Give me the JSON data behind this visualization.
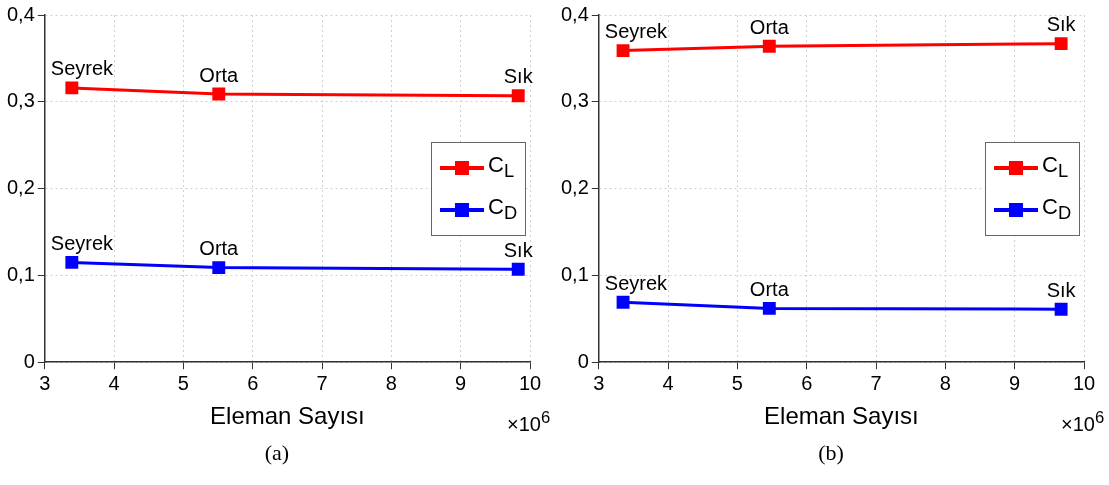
{
  "chart_data": [
    {
      "type": "line",
      "xlabel": "Eleman Sayısı",
      "xlim": [
        3,
        10
      ],
      "xticks": [
        3,
        4,
        5,
        6,
        7,
        8,
        9,
        10
      ],
      "ylim": [
        0,
        0.4
      ],
      "yticks": [
        0,
        {
          "value": 0.1,
          "label": "0,1"
        },
        {
          "value": 0.2,
          "label": "0,2"
        },
        {
          "value": 0.3,
          "label": "0,3"
        },
        {
          "value": 0.4,
          "label": "0,4"
        }
      ],
      "grid": true,
      "legend": "right",
      "marker": "square",
      "line_style": "solid",
      "x": [
        3.39,
        5.51,
        9.83
      ],
      "series": [
        {
          "name": "C$_{L}$",
          "color": "#ff0000",
          "values": [
            0.316,
            0.309,
            0.307
          ]
        },
        {
          "name": "C$_{D}$",
          "color": "#0000ff",
          "values": [
            0.115,
            0.109,
            0.107
          ]
        }
      ],
      "annotations": [
        {
          "text": "Seyrek",
          "x": 3.39,
          "y": 0.316
        },
        {
          "text": "Orta",
          "x": 5.51,
          "y": 0.309
        },
        {
          "text": "Sık",
          "x": 9.83,
          "y": 0.307
        },
        {
          "text": "Seyrek",
          "x": 3.39,
          "y": 0.115
        },
        {
          "text": "Orta",
          "x": 5.51,
          "y": 0.109
        },
        {
          "text": "Sık",
          "x": 9.83,
          "y": 0.107
        },
        "×10$^{6}$",
        "(a)"
      ]
    },
    {
      "type": "line",
      "xlabel": "Eleman Sayısı",
      "xlim": [
        3,
        10
      ],
      "xticks": [
        3,
        4,
        5,
        6,
        7,
        8,
        9,
        10
      ],
      "ylim": [
        0,
        0.4
      ],
      "yticks": [
        0,
        {
          "value": 0.1,
          "label": "0,1"
        },
        {
          "value": 0.2,
          "label": "0,2"
        },
        {
          "value": 0.3,
          "label": "0,3"
        },
        {
          "value": 0.4,
          "label": "0,4"
        }
      ],
      "grid": true,
      "legend": "right",
      "marker": "square",
      "line_style": "solid",
      "x": [
        3.35,
        5.46,
        9.67
      ],
      "series": [
        {
          "name": "C$_{L}$",
          "color": "#ff0000",
          "values": [
            0.359,
            0.364,
            0.367
          ]
        },
        {
          "name": "C$_{D}$",
          "color": "#0000ff",
          "values": [
            0.069,
            0.062,
            0.061
          ]
        }
      ],
      "annotations": [
        {
          "text": "Seyrek",
          "x": 3.35,
          "y": 0.359
        },
        {
          "text": "Orta",
          "x": 5.46,
          "y": 0.364
        },
        {
          "text": "Sık",
          "x": 9.67,
          "y": 0.367
        },
        {
          "text": "Seyrek",
          "x": 3.35,
          "y": 0.069
        },
        {
          "text": "Orta",
          "x": 5.46,
          "y": 0.062
        },
        {
          "text": "Sık",
          "x": 9.67,
          "y": 0.061
        },
        "×10$^{6}$",
        "(b)"
      ]
    }
  ]
}
